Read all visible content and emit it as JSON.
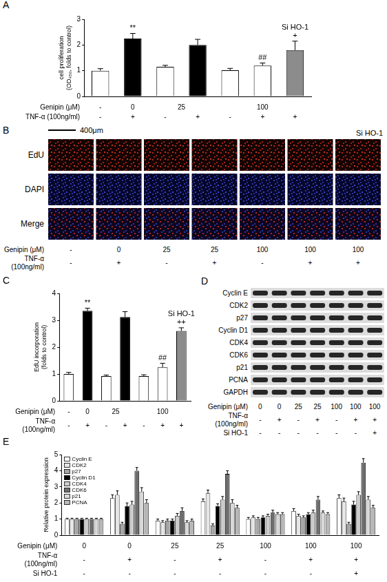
{
  "chart_data": [
    {
      "type": "bar",
      "title": "A",
      "ylabel": "cell proliferation (OD₄₅₀, folds to control)",
      "categories": [
        null,
        null,
        null,
        null,
        null,
        null,
        null
      ],
      "values": [
        1.0,
        2.25,
        1.15,
        2.0,
        1.02,
        1.2,
        1.8
      ],
      "errors": [
        0.08,
        0.2,
        0.06,
        0.22,
        0.07,
        0.1,
        0.35
      ],
      "colors": [
        "#ffffff",
        "#000000",
        "#ffffff",
        "#000000",
        "#ffffff",
        "#ffffff",
        "#8c8c8c"
      ],
      "ylim": [
        0,
        3
      ],
      "yticks": [
        0,
        1,
        2,
        3
      ],
      "grid": false,
      "annotations": [
        {
          "index": 1,
          "text": "**"
        },
        {
          "index": 5,
          "text": "##"
        },
        {
          "index": 6,
          "text": "+"
        },
        {
          "index": 6,
          "text": "Si HO-1"
        }
      ],
      "rows": [
        {
          "label": "Genipin (μM)",
          "cells": [
            "-",
            "0",
            {
              "text": "25",
              "span": 2
            },
            {
              "text": "100",
              "span": 3
            }
          ]
        },
        {
          "label": "TNF-α (100ng/ml)",
          "cells": [
            "-",
            "+",
            "-",
            "+",
            "-",
            "+",
            "+"
          ]
        }
      ]
    },
    {
      "type": "bar",
      "title": "C",
      "ylabel": "EdU incorporation (folds to control)",
      "categories": [
        null,
        null,
        null,
        null,
        null,
        null,
        null
      ],
      "values": [
        1.0,
        3.35,
        0.92,
        3.12,
        0.92,
        1.25,
        2.6
      ],
      "errors": [
        0.06,
        0.1,
        0.04,
        0.2,
        0.05,
        0.15,
        0.12
      ],
      "colors": [
        "#ffffff",
        "#000000",
        "#ffffff",
        "#000000",
        "#ffffff",
        "#ffffff",
        "#8c8c8c"
      ],
      "ylim": [
        0,
        4
      ],
      "yticks": [
        0,
        1,
        2,
        3,
        4
      ],
      "grid": false,
      "annotations": [
        {
          "index": 1,
          "text": "**"
        },
        {
          "index": 5,
          "text": "##"
        },
        {
          "index": 6,
          "text": "++"
        },
        {
          "index": 6,
          "text": "Si HO-1"
        }
      ],
      "rows": [
        {
          "label": "Genipin (μM)",
          "cells": [
            "-",
            "0",
            {
              "text": "25",
              "span": 2
            },
            {
              "text": "100",
              "span": 3
            }
          ]
        },
        {
          "label": "TNF-α (100ng/ml)",
          "cells": [
            "-",
            "+",
            "-",
            "+",
            "-",
            "+",
            "+"
          ]
        }
      ]
    },
    {
      "type": "bar",
      "title": "E",
      "ylabel": "Relative protein expression",
      "categories": [
        null,
        null,
        null,
        null,
        null,
        null,
        null
      ],
      "series": [
        {
          "name": "Cyclin E",
          "color": "#ffffff",
          "values": [
            1,
            2.3,
            0.9,
            2.1,
            1.0,
            1.5,
            2.3
          ],
          "errors": [
            0.05,
            0.2,
            0.1,
            0.15,
            0.1,
            0.15,
            0.2
          ]
        },
        {
          "name": "CDK2",
          "color": "#e6e6e6",
          "values": [
            1,
            2.5,
            0.8,
            2.6,
            1.1,
            1.2,
            2.1
          ],
          "errors": [
            0.05,
            0.25,
            0.1,
            0.2,
            0.1,
            0.1,
            0.2
          ]
        },
        {
          "name": "p27",
          "color": "#a6a6a6",
          "values": [
            1,
            0.7,
            0.9,
            0.6,
            1.0,
            1.1,
            0.7
          ],
          "errors": [
            0.05,
            0.1,
            0.1,
            0.1,
            0.1,
            0.1,
            0.1
          ]
        },
        {
          "name": "Cyclin D1",
          "color": "#000000",
          "values": [
            1,
            1.8,
            0.9,
            1.8,
            1.1,
            1.3,
            1.9
          ],
          "errors": [
            0.05,
            0.2,
            0.1,
            0.15,
            0.1,
            0.1,
            0.2
          ]
        },
        {
          "name": "CDK4",
          "color": "#cccccc",
          "values": [
            1,
            1.9,
            1.2,
            2.2,
            1.2,
            1.4,
            2.5
          ],
          "errors": [
            0.05,
            0.2,
            0.15,
            0.2,
            0.1,
            0.15,
            0.2
          ]
        },
        {
          "name": "CDK6",
          "color": "#6e6e6e",
          "values": [
            1,
            4.0,
            1.5,
            3.8,
            1.4,
            2.2,
            4.5
          ],
          "errors": [
            0.05,
            0.2,
            0.2,
            0.2,
            0.15,
            0.2,
            0.25
          ]
        },
        {
          "name": "p21",
          "color": "#d9d9d9",
          "values": [
            1,
            2.7,
            0.8,
            2.0,
            1.3,
            1.4,
            2.2
          ],
          "errors": [
            0.05,
            0.25,
            0.1,
            0.2,
            0.1,
            0.1,
            0.2
          ]
        },
        {
          "name": "PCNA",
          "color": "#b8b8b8",
          "values": [
            1,
            2.0,
            0.9,
            1.7,
            1.3,
            1.3,
            1.7
          ],
          "errors": [
            0.05,
            0.2,
            0.1,
            0.15,
            0.1,
            0.1,
            0.15
          ]
        }
      ],
      "ylim": [
        0,
        5
      ],
      "yticks": [
        0,
        1,
        2,
        3,
        4,
        5
      ],
      "grid": false,
      "legend": "upper left",
      "rows": [
        {
          "label": "Genipin (μM)",
          "cells": [
            "0",
            "0",
            "25",
            "25",
            "100",
            "100",
            "100"
          ]
        },
        {
          "label": "TNF-α (100ng/ml)",
          "cells": [
            "-",
            "+",
            "-",
            "+",
            "-",
            "+",
            "+"
          ]
        },
        {
          "label": "Si HO-1",
          "cells": [
            "-",
            "-",
            "-",
            "-",
            "-",
            "-",
            "+"
          ]
        }
      ]
    }
  ],
  "panel_B": {
    "panel": "B",
    "scale_bar": "400μm",
    "label": "Si HO-1",
    "rows": [
      "EdU",
      "DAPI",
      "Merge"
    ],
    "conditions": [
      {
        "label": "Genipin (μM)",
        "cells": [
          "-",
          "0",
          "25",
          "25",
          "100",
          "100",
          "100"
        ]
      },
      {
        "label": "TNF-α (100ng/ml)",
        "cells": [
          "-",
          "+",
          "-",
          "+",
          "-",
          "+",
          "+"
        ]
      }
    ]
  },
  "panel_D": {
    "panel": "D",
    "bands": [
      "Cyclin E",
      "CDK2",
      "p27",
      "Cyclin D1",
      "CDK4",
      "CDK6",
      "p21",
      "PCNA",
      "GAPDH"
    ],
    "conditions": [
      {
        "label": "Genipin (μM)",
        "cells": [
          "0",
          "0",
          "25",
          "25",
          "100",
          "100",
          "100"
        ]
      },
      {
        "label": "TNF-α (100ng/ml)",
        "cells": [
          "-",
          "+",
          "-",
          "+",
          "-",
          "+",
          "+"
        ]
      },
      {
        "label": "Si HO-1",
        "cells": [
          "-",
          "-",
          "-",
          "-",
          "-",
          "-",
          "+"
        ]
      }
    ]
  }
}
